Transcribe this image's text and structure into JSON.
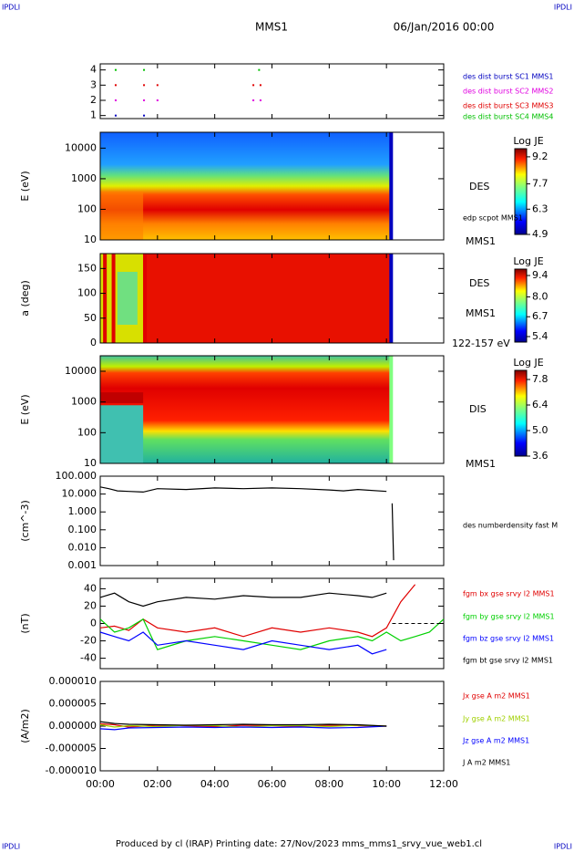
{
  "header": {
    "corner_tl": "IPDLI",
    "corner_tr": "IPDLI",
    "corner_bl": "IPDLI",
    "corner_br": "IPDLI",
    "mission": "MMS1",
    "date": "06/Jan/2016 00:00",
    "footer": "Produced by cl (IRAP)   Printing date: 27/Nov/2023   mms_mms1_srvy_vue_web1.cl"
  },
  "chart_data": [
    {
      "type": "scatter",
      "xlim": [
        0,
        12
      ],
      "ylim": [
        0.8,
        4.4
      ],
      "yticks": [
        1,
        2,
        3,
        4
      ],
      "series": [
        {
          "name": "des dist burst SC1 MMS1",
          "color": "#0000c0",
          "x": [
            0.54,
            1.53
          ],
          "y": [
            1,
            1
          ]
        },
        {
          "name": "des dist burst SC2 MMS2",
          "color": "#e000e0",
          "x": [
            0.54,
            1.53,
            2.0,
            5.35,
            5.6
          ],
          "y": [
            2,
            2,
            2,
            2,
            2
          ]
        },
        {
          "name": "des dist burst SC3 MMS3",
          "color": "#e00000",
          "x": [
            0.54,
            1.53,
            2.0,
            5.35,
            5.6
          ],
          "y": [
            3,
            3,
            3,
            3,
            3
          ]
        },
        {
          "name": "des dist burst SC4 MMS4",
          "color": "#00c000",
          "x": [
            0.54,
            1.53,
            5.55
          ],
          "y": [
            4,
            4,
            4
          ]
        }
      ]
    },
    {
      "type": "heatmap",
      "ylabel": "E (eV)",
      "log": true,
      "xlim": [
        0,
        12
      ],
      "ylim": [
        10,
        33000
      ],
      "yticks": [
        10,
        100,
        1000,
        10000
      ],
      "labels": [
        "DES",
        "edp scpot MMS1",
        "MMS1"
      ],
      "colorbar": {
        "title": "Log JE",
        "clim": [
          4.9,
          9.65
        ],
        "ticks": [
          9.2,
          7.7,
          6.3,
          4.9
        ]
      }
    },
    {
      "type": "heatmap",
      "ylabel": "a (deg)",
      "xlim": [
        0,
        12
      ],
      "ylim": [
        0,
        180
      ],
      "yticks": [
        0,
        50,
        100,
        150
      ],
      "labels": [
        "DES",
        "MMS1",
        "122-157 eV"
      ],
      "colorbar": {
        "title": "Log JE",
        "clim": [
          5.04,
          9.82
        ],
        "ticks": [
          9.4,
          {
            "value": 8,
            "label": "8.0"
          },
          6.7,
          5.4
        ]
      }
    },
    {
      "type": "heatmap",
      "ylabel": "E (eV)",
      "log": true,
      "xlim": [
        0,
        12
      ],
      "ylim": [
        10,
        32000
      ],
      "yticks": [
        10,
        100,
        1000,
        10000
      ],
      "labels": [
        "DIS",
        "MMS1"
      ],
      "colorbar": {
        "title": "Log JE",
        "clim": [
          3.6,
          8.3
        ],
        "ticks": [
          7.8,
          6.4,
          {
            "value": 5,
            "label": "5.0"
          },
          3.6
        ]
      }
    },
    {
      "type": "line",
      "ylabel": "(cm^-3)",
      "log": true,
      "xlim": [
        0,
        12
      ],
      "ylim": [
        0.001,
        100
      ],
      "yticks": [
        {
          "value": 100,
          "label": "100.000"
        },
        {
          "value": 10,
          "label": "10.000"
        },
        {
          "value": 1,
          "label": "1.000"
        },
        {
          "value": 0.1,
          "label": "0.100"
        },
        {
          "value": 0.01,
          "label": "0.010"
        },
        {
          "value": 0.001,
          "label": "0.001"
        }
      ],
      "labels": [
        "des numberdensity fast M"
      ],
      "x": [
        0,
        0.3,
        0.6,
        1,
        1.5,
        2,
        3,
        4,
        5,
        6,
        7,
        8,
        8.5,
        9,
        10,
        10.1,
        10.2,
        10.25
      ],
      "series": [
        {
          "color": "#000000",
          "values": [
            25,
            20,
            15,
            14,
            13,
            20,
            18,
            22,
            20,
            22,
            20,
            17,
            15,
            18,
            14,
            null,
            3,
            0.002
          ]
        }
      ]
    },
    {
      "type": "line",
      "ylabel": "(nT)",
      "xlim": [
        0,
        12
      ],
      "ylim": [
        -52,
        52
      ],
      "yticks": [
        40,
        20,
        0,
        -20,
        -40
      ],
      "x": [
        0,
        0.5,
        1,
        1.5,
        2,
        3,
        4,
        5,
        6,
        7,
        8,
        9,
        9.5,
        10,
        10.5,
        11,
        11.5,
        12
      ],
      "series": [
        {
          "name": "fgm bx gse srvy l2 MMS1",
          "color": "#e00000",
          "values": [
            -5,
            -3,
            -8,
            5,
            -5,
            -10,
            -5,
            -15,
            -5,
            -10,
            -5,
            -10,
            -15,
            -5,
            25,
            45,
            null,
            null
          ]
        },
        {
          "name": "fgm by gse srvy l2 MMS1",
          "color": "#00d000",
          "values": [
            5,
            -10,
            -5,
            5,
            -30,
            -20,
            -15,
            -20,
            -25,
            -30,
            -20,
            -15,
            -20,
            -10,
            -20,
            -15,
            -10,
            5
          ]
        },
        {
          "name": "fgm bz gse srvy l2 MMS1",
          "color": "#0000ff",
          "values": [
            -10,
            -15,
            -20,
            -10,
            -25,
            -20,
            -25,
            -30,
            -20,
            -25,
            -30,
            -25,
            -35,
            -30,
            null,
            null,
            null,
            null
          ]
        },
        {
          "name": "fgm bt gse srvy l2 MMS1",
          "color": "#000000",
          "values": [
            30,
            35,
            25,
            20,
            25,
            30,
            28,
            32,
            30,
            30,
            35,
            32,
            30,
            35,
            null,
            null,
            null,
            null
          ]
        }
      ]
    },
    {
      "type": "line",
      "ylabel": "(A/m2)",
      "xlim": [
        0,
        12
      ],
      "ylim": [
        -1e-05,
        1e-05
      ],
      "yticks": [
        {
          "value": 1e-05,
          "label": "0.000010"
        },
        {
          "value": 5e-06,
          "label": "0.000005"
        },
        {
          "value": 0,
          "label": "0.000000"
        },
        {
          "value": -5e-06,
          "label": "-0.000005"
        },
        {
          "value": -1e-05,
          "label": "-0.000010"
        }
      ],
      "xticks": [
        {
          "value": 0,
          "label": "00:00"
        },
        {
          "value": 2,
          "label": "02:00"
        },
        {
          "value": 4,
          "label": "04:00"
        },
        {
          "value": 6,
          "label": "06:00"
        },
        {
          "value": 8,
          "label": "08:00"
        },
        {
          "value": 10,
          "label": "10:00"
        },
        {
          "value": 12,
          "label": "12:00"
        }
      ],
      "x": [
        0,
        0.5,
        1,
        2,
        3,
        4,
        5,
        6,
        7,
        8,
        9,
        10
      ],
      "series": [
        {
          "name": "Jx gse A m2 MMS1",
          "color": "#e00000",
          "values": [
            5e-07,
            3e-07,
            -2e-07,
            2e-07,
            1e-07,
            -1e-07,
            2e-07,
            1e-07,
            -1e-07,
            2e-07,
            1e-07,
            0
          ]
        },
        {
          "name": "Jy gse A m2 MMS1",
          "color": "#a0d000",
          "values": [
            3e-07,
            -2e-07,
            1e-07,
            -1e-07,
            2e-07,
            1e-07,
            -2e-07,
            1e-07,
            1e-07,
            -1e-07,
            2e-07,
            0
          ]
        },
        {
          "name": "Jz gse A m2 MMS1",
          "color": "#0000ff",
          "values": [
            -6e-07,
            -8e-07,
            -4e-07,
            -3e-07,
            -2e-07,
            -3e-07,
            -2e-07,
            -3e-07,
            -2e-07,
            -4e-07,
            -3e-07,
            0
          ]
        },
        {
          "name": "J A m2 MMS1",
          "color": "#000000",
          "values": [
            1e-06,
            6e-07,
            4e-07,
            3e-07,
            2e-07,
            3e-07,
            4e-07,
            3e-07,
            3e-07,
            4e-07,
            3e-07,
            0
          ]
        }
      ]
    }
  ]
}
